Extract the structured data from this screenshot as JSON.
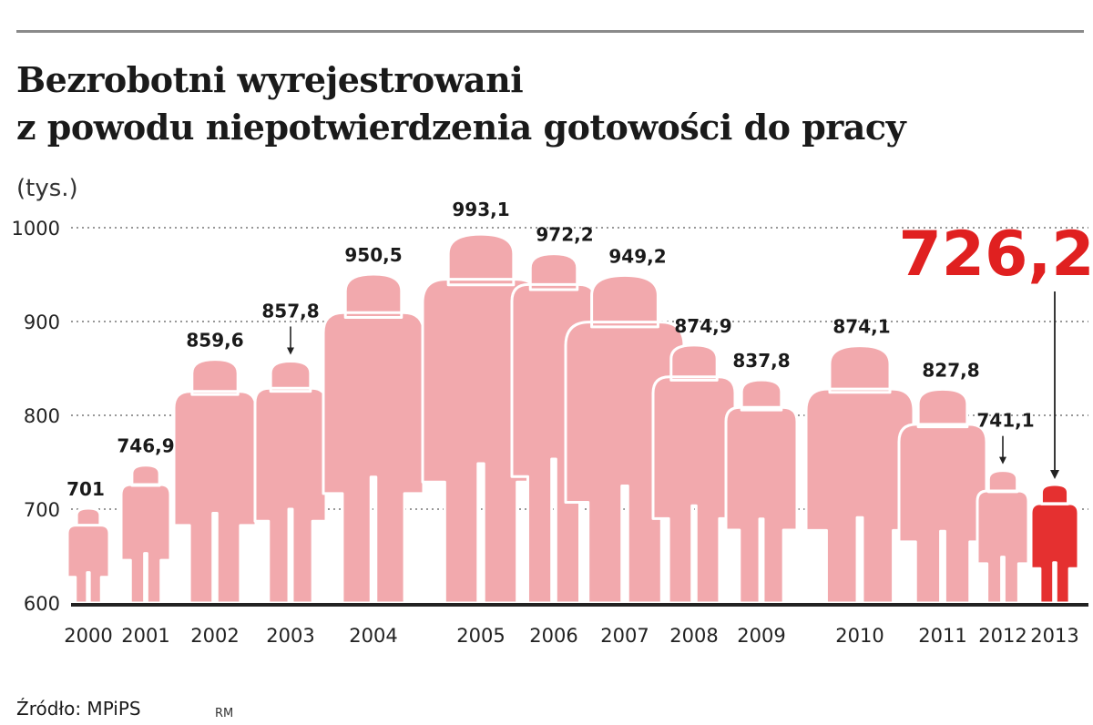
{
  "title_line1": "Bezrobotni wyrejestrowani",
  "title_line2": "z powodu niepotwierdzenia gotowości do pracy",
  "unit": "(tys.)",
  "source": "Źródło: MPiPS",
  "credit": "RM",
  "colors": {
    "figure": "#f2a9ad",
    "highlight": "#e53030",
    "highlight_text": "#e02020",
    "axis": "#222222",
    "grid": "#777777"
  },
  "chart_data": {
    "type": "bar",
    "categories": [
      "2000",
      "2001",
      "2002",
      "2003",
      "2004",
      "2005",
      "2006",
      "2007",
      "2008",
      "2009",
      "2010",
      "2011",
      "2012",
      "2013"
    ],
    "values": [
      701,
      746.9,
      859.6,
      857.8,
      950.5,
      993.1,
      972.2,
      949.2,
      874.9,
      837.8,
      874.1,
      827.8,
      741.1,
      726.2
    ],
    "value_labels": [
      "701",
      "746,9",
      "859,6",
      "857,8",
      "950,5",
      "993,1",
      "972,2",
      "949,2",
      "874,9",
      "837,8",
      "874,1",
      "827,8",
      "741,1",
      "726,2"
    ],
    "highlight_index": 13,
    "ylim": [
      600,
      1000
    ],
    "yticks": [
      600,
      700,
      800,
      900,
      1000
    ],
    "ytick_labels": [
      "600",
      "700",
      "800",
      "900",
      "1000"
    ],
    "grid": true,
    "grid_style": "dotted"
  }
}
